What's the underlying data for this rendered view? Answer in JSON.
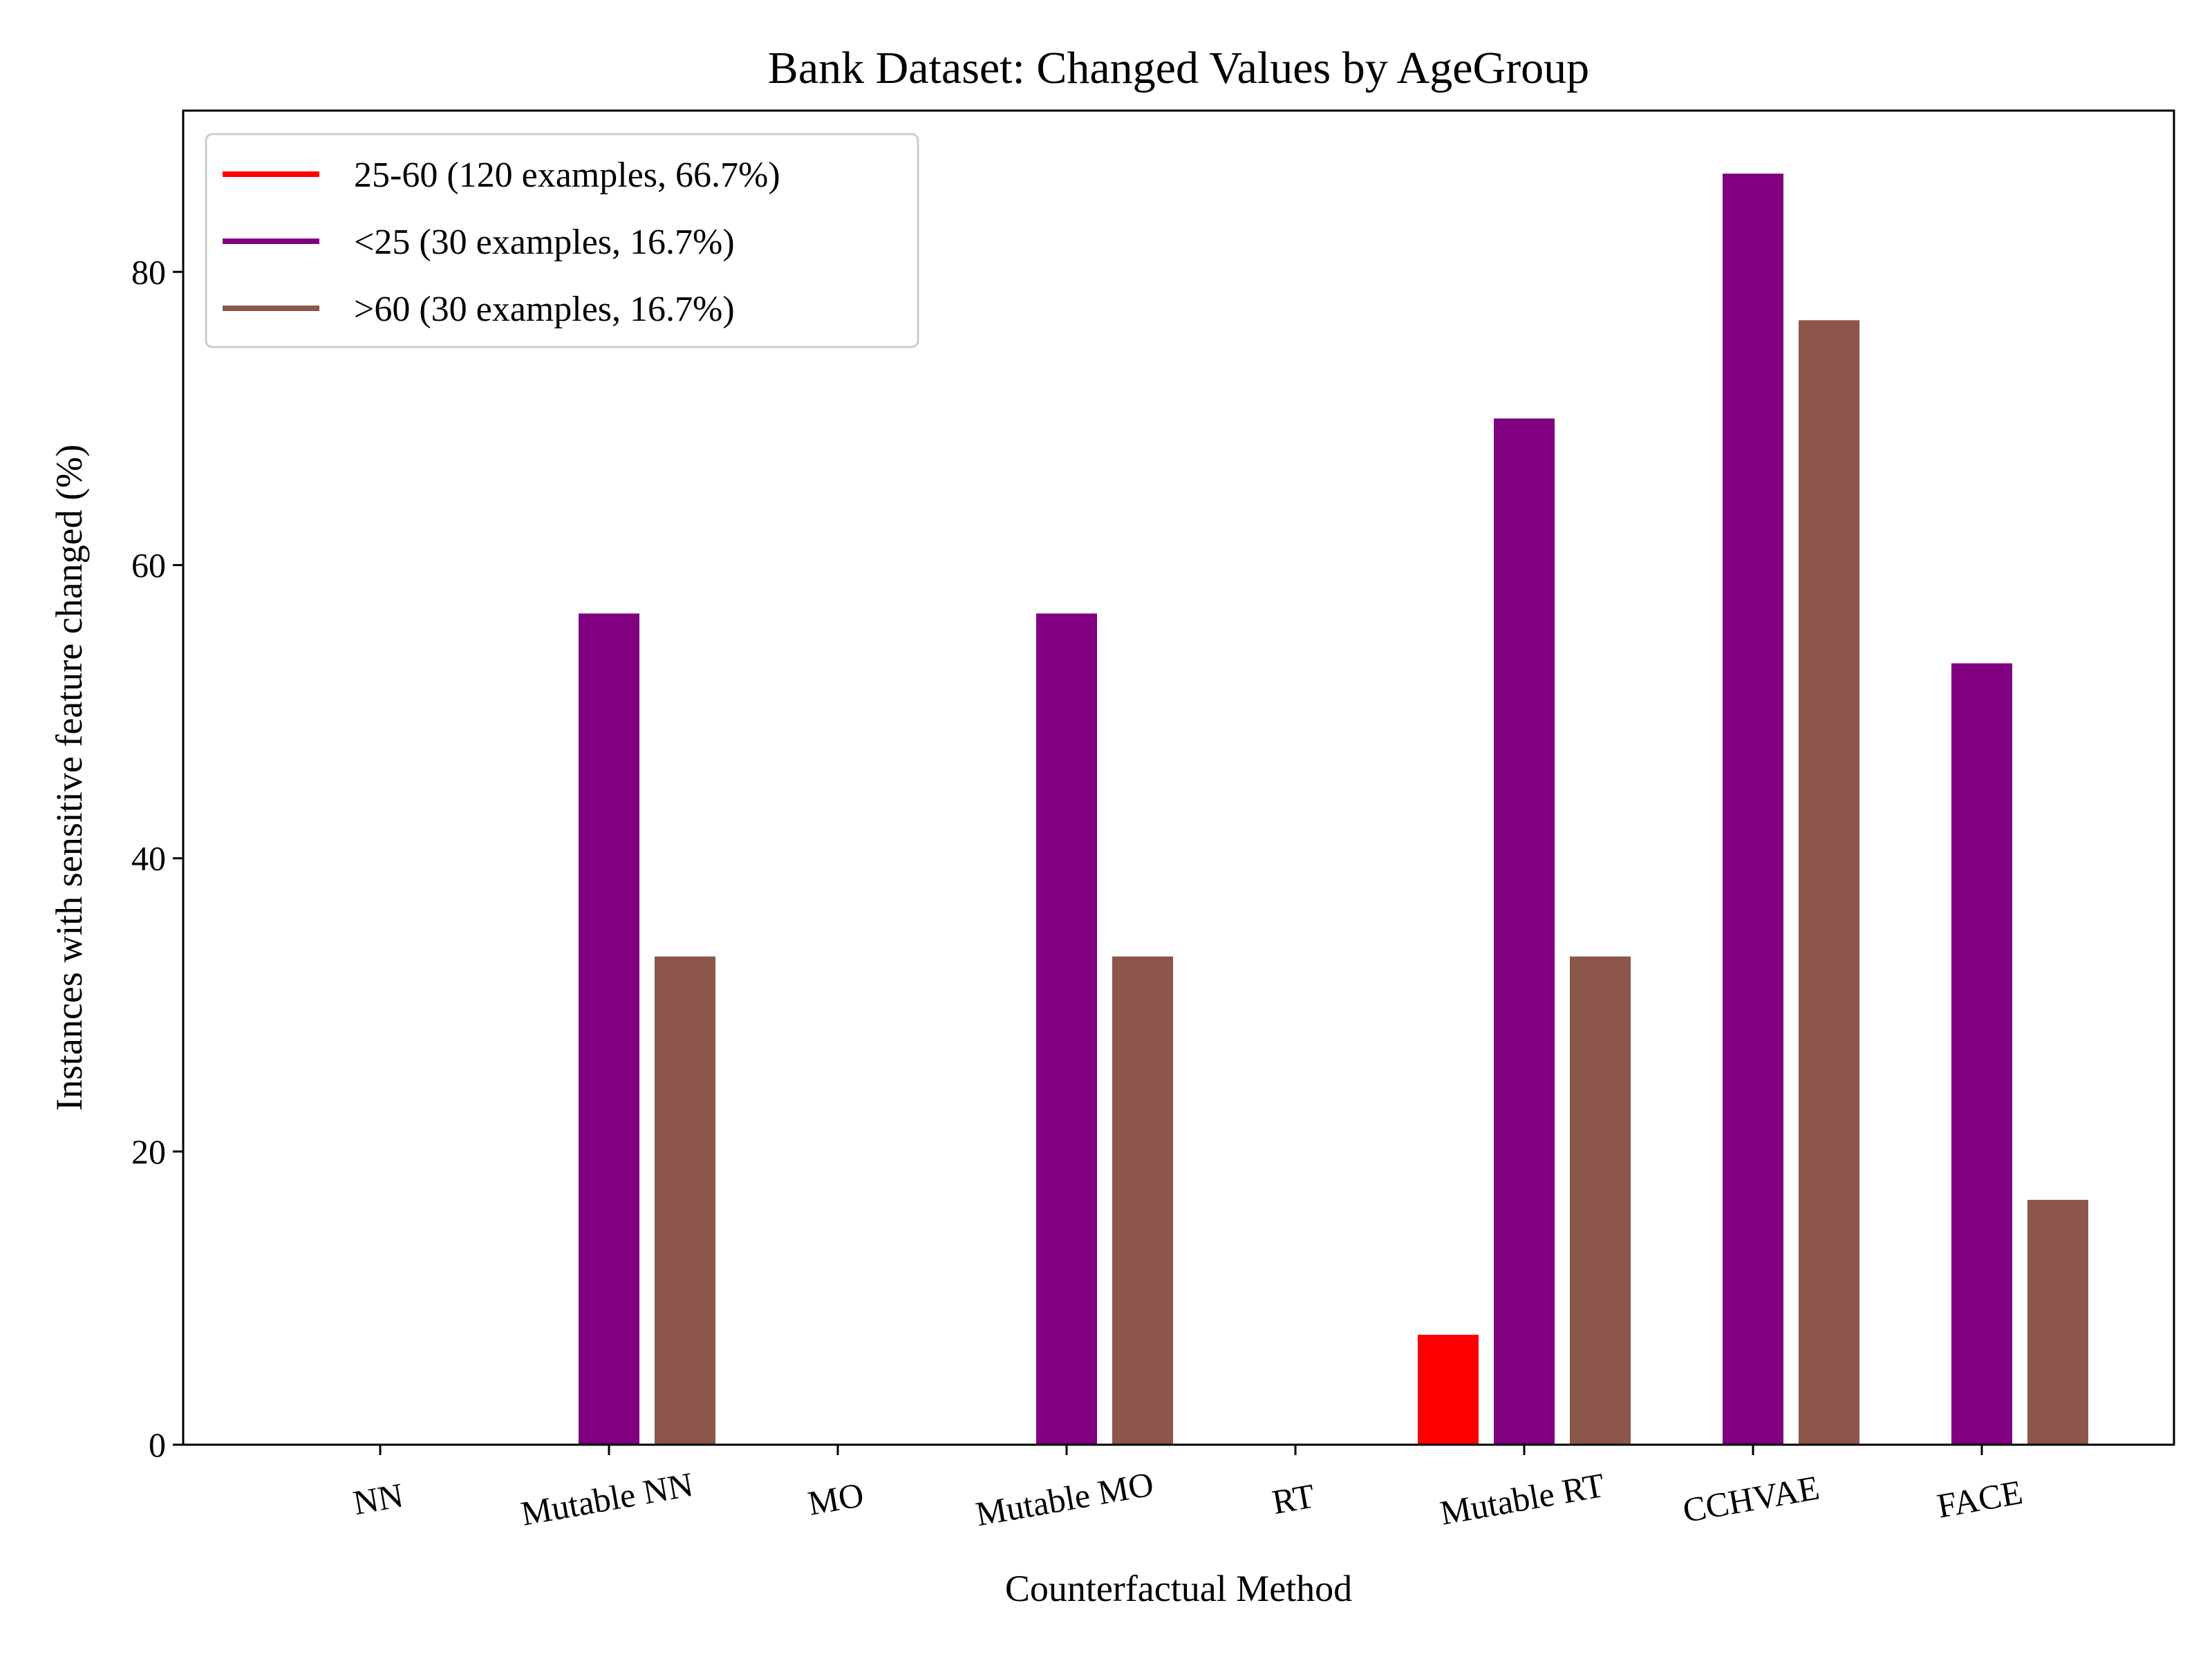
{
  "chart_data": {
    "type": "bar",
    "title": "Bank Dataset: Changed Values by AgeGroup",
    "xlabel": "Counterfactual Method",
    "ylabel": "Instances with sensitive feature changed (%)",
    "categories": [
      "NN",
      "Mutable NN",
      "MO",
      "Mutable MO",
      "RT",
      "Mutable RT",
      "CCHVAE",
      "FACE"
    ],
    "ylim": [
      0,
      91
    ],
    "yticks": [
      0,
      20,
      40,
      60,
      80
    ],
    "grid": false,
    "legend_position": "upper-left",
    "series": [
      {
        "name": "25-60 (120 examples, 66.7%)",
        "color": "#ff0000",
        "values": [
          0,
          0,
          0,
          0,
          0,
          7.5,
          0,
          0
        ]
      },
      {
        "name": "<25 (30 examples, 16.7%)",
        "color": "#800080",
        "values": [
          0,
          56.7,
          0,
          56.7,
          0,
          70.0,
          86.7,
          53.3
        ]
      },
      {
        "name": ">60 (30 examples, 16.7%)",
        "color": "#8c564b",
        "values": [
          0,
          33.3,
          0,
          33.3,
          0,
          33.3,
          76.7,
          16.7
        ]
      }
    ]
  }
}
